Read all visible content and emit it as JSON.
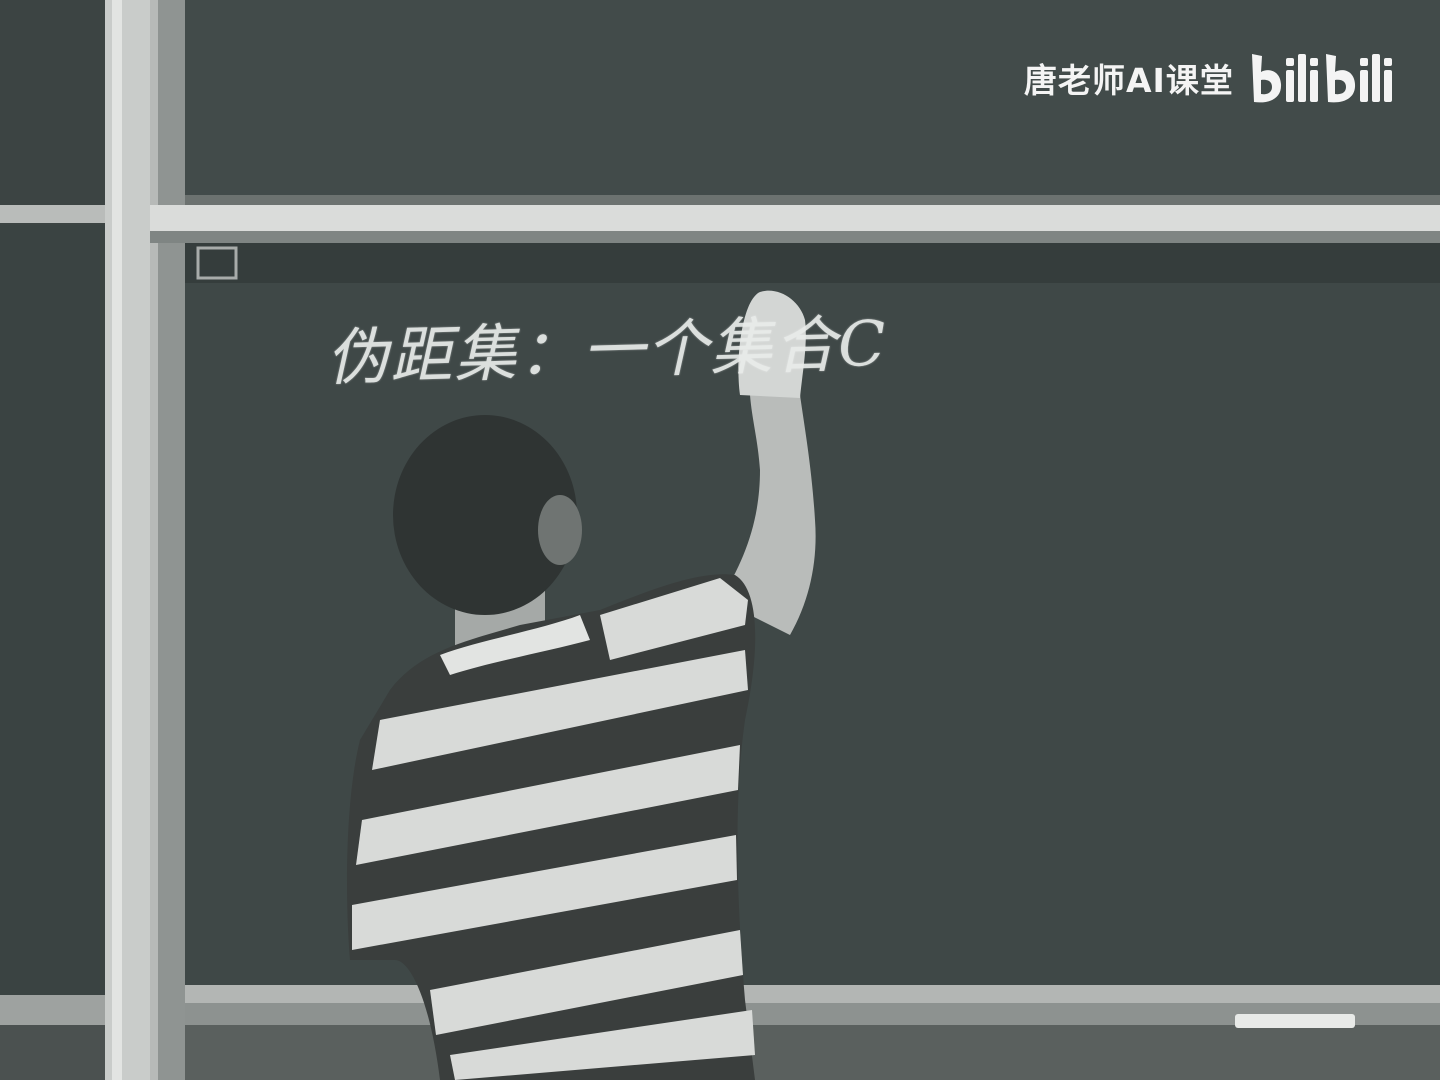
{
  "watermark": {
    "channel": "唐老师AI课堂",
    "logo": "bilibili-logo"
  },
  "chalkboard": {
    "handwriting": "伪距集：一个集合C"
  },
  "colors": {
    "board": "#3f4847",
    "frame": "#d6d8d6",
    "chalk": "#e9ecea",
    "shirt_dark": "#3a3e3d",
    "shirt_light": "#d8dad8"
  }
}
